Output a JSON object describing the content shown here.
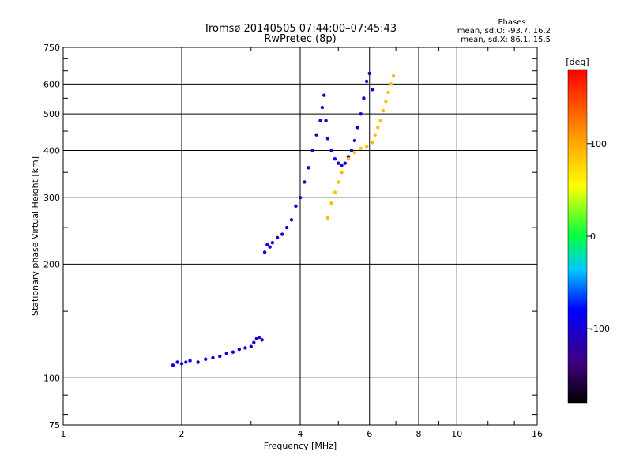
{
  "header": {
    "title_line1": "Tromsø 20140505 07:44:00–07:45:43",
    "title_line2": "RwPretec (8p)",
    "stats_title": "Phases",
    "stats_o": "mean, sd,O: -93.7, 16.2",
    "stats_x": "mean, sd,X: 86.1, 15.5"
  },
  "chart_data": {
    "type": "scatter",
    "xlabel": "Frequency [MHz]",
    "ylabel": "Stationary phase Virtual Height [km]",
    "x_scale": "log",
    "y_scale": "log",
    "xlim": [
      1,
      16
    ],
    "ylim": [
      75,
      750
    ],
    "x_ticks": [
      1,
      2,
      4,
      6,
      8,
      10,
      16
    ],
    "x_tick_labels": [
      "1",
      "2",
      "4",
      "6",
      "8",
      "10",
      "16"
    ],
    "y_ticks": [
      75,
      100,
      200,
      300,
      400,
      500,
      600,
      750
    ],
    "y_tick_labels": [
      "75",
      "100",
      "200",
      "300",
      "400",
      "500",
      "600",
      "750"
    ],
    "grid": true,
    "colorbar": {
      "label": "[deg]",
      "range": [
        -180,
        180
      ],
      "ticks": [
        -100,
        0,
        100
      ],
      "tick_labels": [
        "-100",
        "0",
        "100"
      ]
    },
    "series": [
      {
        "points": [
          [
            1.9,
            108,
            -95
          ],
          [
            1.95,
            110,
            -90
          ],
          [
            2.0,
            109,
            -100
          ],
          [
            2.05,
            110,
            -95
          ],
          [
            2.1,
            111,
            -92
          ],
          [
            2.2,
            110,
            -98
          ],
          [
            2.3,
            112,
            -95
          ],
          [
            2.4,
            113,
            -90
          ],
          [
            2.5,
            114,
            -92
          ],
          [
            2.6,
            116,
            -88
          ],
          [
            2.7,
            117,
            -85
          ],
          [
            2.8,
            119,
            -85
          ],
          [
            2.9,
            120,
            -90
          ],
          [
            3.0,
            121,
            -95
          ],
          [
            3.05,
            124,
            -100
          ],
          [
            3.1,
            127,
            -102
          ],
          [
            3.15,
            128,
            -98
          ],
          [
            3.2,
            126,
            -95
          ]
        ]
      },
      {
        "points": [
          [
            3.25,
            215,
            -100
          ],
          [
            3.3,
            225,
            -105
          ],
          [
            3.35,
            222,
            -98
          ],
          [
            3.4,
            228,
            -100
          ],
          [
            3.5,
            235,
            -102
          ],
          [
            3.6,
            240,
            -98
          ],
          [
            3.7,
            250,
            -100
          ],
          [
            3.8,
            262,
            -105
          ],
          [
            3.9,
            285,
            -102
          ],
          [
            4.0,
            300,
            -100
          ],
          [
            4.1,
            330,
            -100
          ],
          [
            4.2,
            360,
            -102
          ],
          [
            4.3,
            400,
            -100
          ],
          [
            4.4,
            440,
            -98
          ],
          [
            4.5,
            480,
            -100
          ],
          [
            4.55,
            520,
            -100
          ],
          [
            4.6,
            560,
            -105
          ],
          [
            4.65,
            480,
            -98
          ],
          [
            4.7,
            430,
            -100
          ],
          [
            4.8,
            400,
            -102
          ],
          [
            4.9,
            380,
            -100
          ],
          [
            5.0,
            370,
            -98
          ],
          [
            5.1,
            365,
            -100
          ],
          [
            5.2,
            370,
            -102
          ],
          [
            5.3,
            385,
            -100
          ],
          [
            5.4,
            400,
            -98
          ],
          [
            5.5,
            425,
            -100
          ],
          [
            5.6,
            460,
            -102
          ],
          [
            5.7,
            500,
            -100
          ],
          [
            5.8,
            550,
            -100
          ],
          [
            5.9,
            610,
            -105
          ],
          [
            6.0,
            640,
            -100
          ],
          [
            6.1,
            580,
            -98
          ]
        ]
      },
      {
        "points": [
          [
            4.7,
            265,
            90
          ],
          [
            4.8,
            290,
            88
          ],
          [
            4.9,
            310,
            85
          ],
          [
            5.0,
            330,
            90
          ],
          [
            5.1,
            350,
            92
          ],
          [
            5.3,
            380,
            88
          ],
          [
            5.5,
            395,
            90
          ],
          [
            5.7,
            405,
            86
          ],
          [
            5.9,
            410,
            88
          ],
          [
            6.1,
            420,
            90
          ],
          [
            6.2,
            440,
            92
          ],
          [
            6.3,
            460,
            85
          ],
          [
            6.4,
            480,
            88
          ],
          [
            6.5,
            510,
            90
          ],
          [
            6.6,
            540,
            86
          ],
          [
            6.7,
            570,
            88
          ],
          [
            6.8,
            600,
            90
          ],
          [
            6.9,
            630,
            92
          ]
        ]
      }
    ]
  }
}
